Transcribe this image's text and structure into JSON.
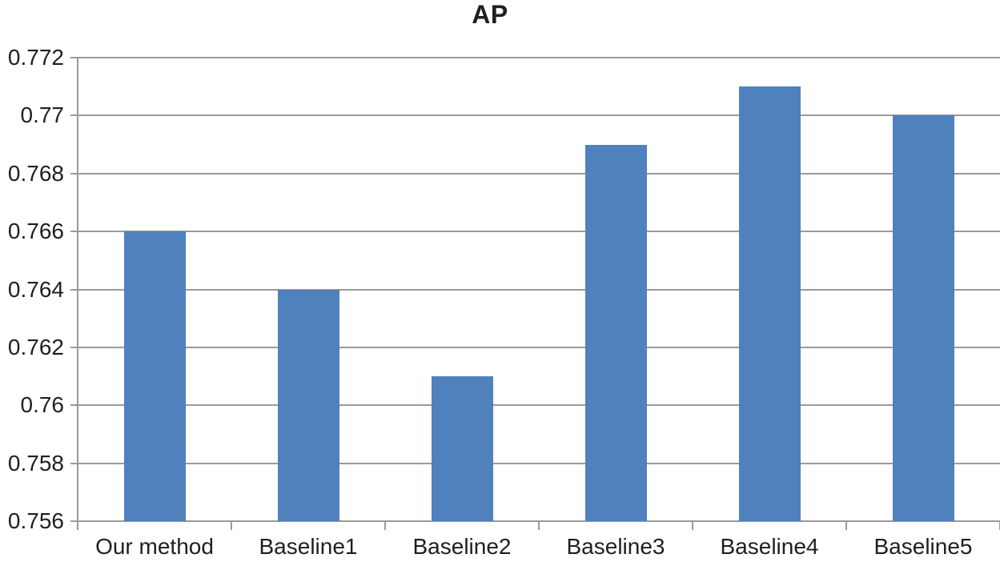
{
  "title": "AP",
  "chart_data": {
    "type": "bar",
    "title": "AP",
    "categories": [
      "Our method",
      "Baseline1",
      "Baseline2",
      "Baseline3",
      "Baseline4",
      "Baseline5"
    ],
    "values": [
      0.766,
      0.764,
      0.761,
      0.769,
      0.771,
      0.77
    ],
    "xlabel": "",
    "ylabel": "",
    "ylim": [
      0.756,
      0.772
    ],
    "ytick_step": 0.002,
    "ytick_labels": [
      "0.756",
      "0.758",
      "0.76",
      "0.762",
      "0.764",
      "0.766",
      "0.768",
      "0.77",
      "0.772"
    ],
    "grid": true,
    "legend": false,
    "legend_position": "none",
    "bar_color": "#4f81bd",
    "gridline_color": "#9a9a9a",
    "axis_color": "#9a9a9a",
    "text_color": "#1f1f1f",
    "background": "#ffffff"
  }
}
